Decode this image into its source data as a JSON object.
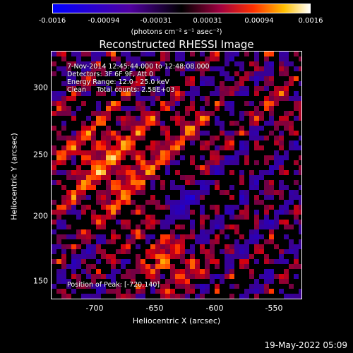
{
  "colorbar": {
    "ticks": [
      "-0.0016",
      "-0.00094",
      "-0.00031",
      "0.00031",
      "0.00094",
      "0.0016"
    ],
    "units": "(photons cm⁻² s⁻¹ asec⁻²)"
  },
  "title": "Reconstructed RHESSI Image",
  "info": {
    "line1": "7-Nov-2014 12:45:44.000 to 12:48:08.000",
    "line2": "Detectors: 3F 6F 9F, Att 0",
    "line3": "Energy Range: 12.0 - 25.0 keV",
    "line4": "Clean     Total counts: 2.58E+03",
    "peak": "Position of Peak: [-720,140]"
  },
  "axes": {
    "xlabel": "Heliocentric X (arcsec)",
    "ylabel": "Heliocentric Y (arcsec)",
    "xticks": [
      "-700",
      "-650",
      "-600",
      "-550"
    ],
    "yticks": [
      "300",
      "250",
      "200",
      "150"
    ]
  },
  "footer": "19-May-2022 05:09",
  "colors": {
    "negative": "#0000ff",
    "zero": "#000000",
    "positive_mid": "#ff0000",
    "positive_high": "#ffffff"
  }
}
